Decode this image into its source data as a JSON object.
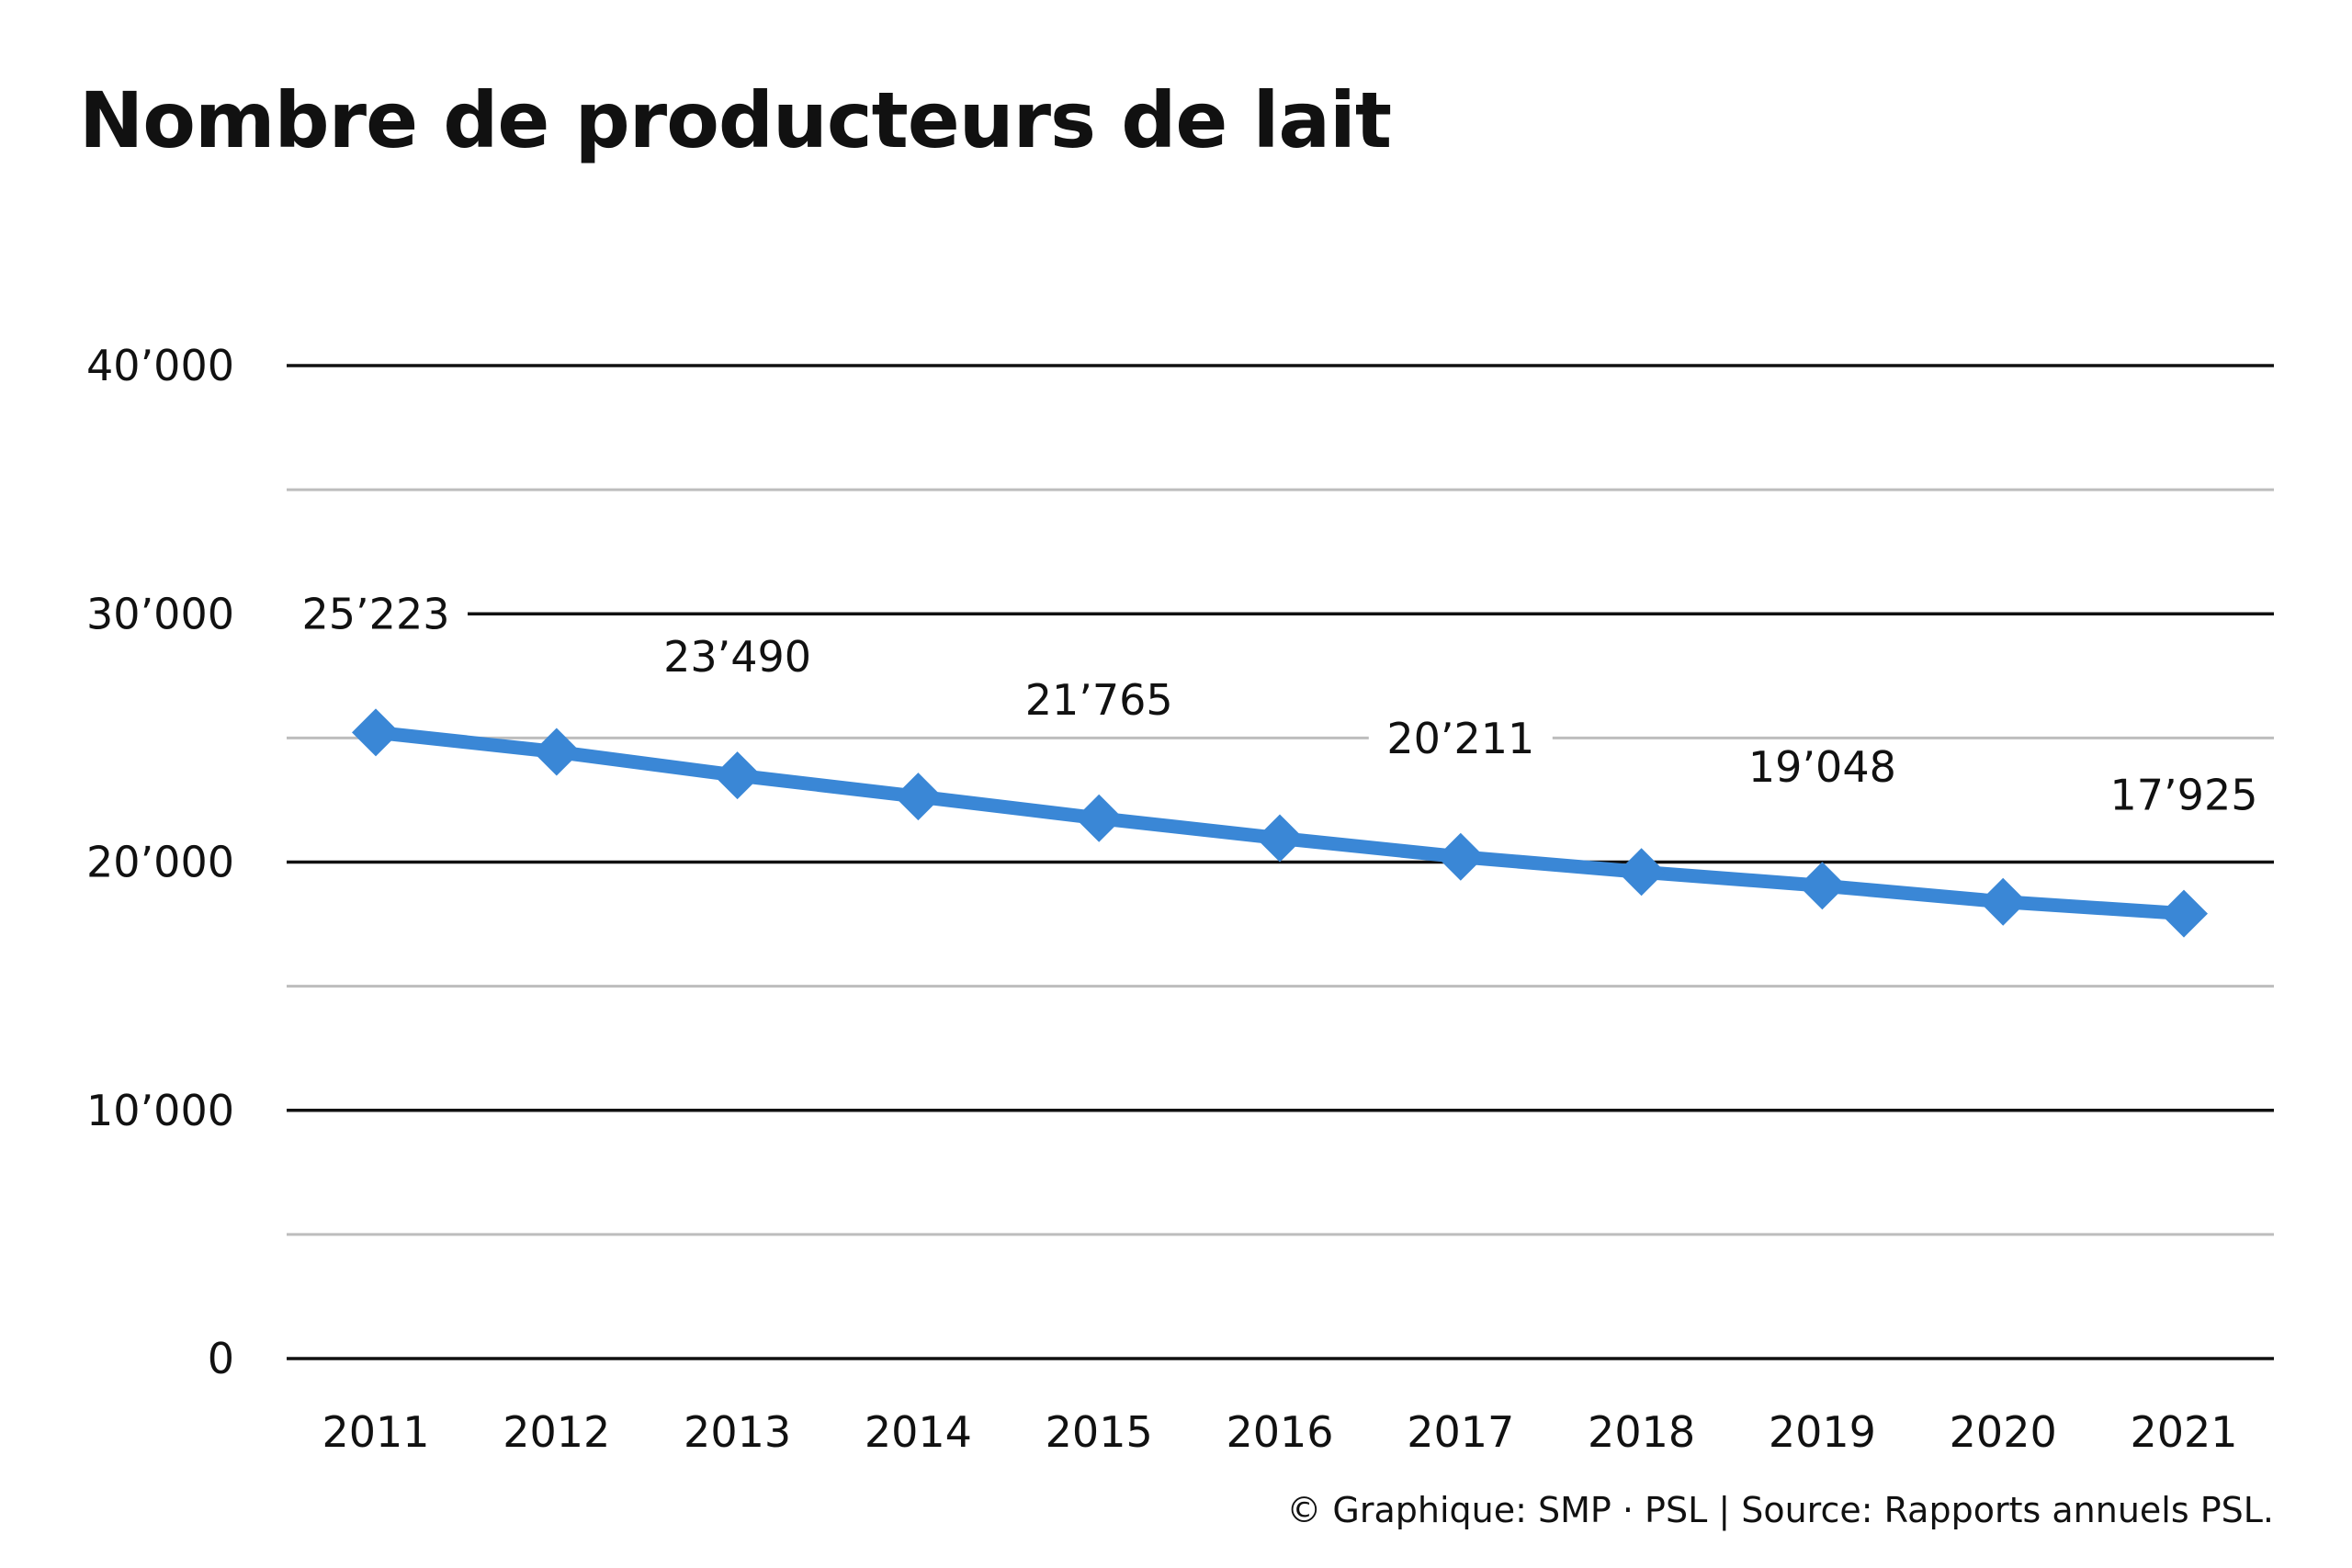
{
  "header": {
    "title": "Nombre de producteurs de lait"
  },
  "footer": {
    "credit": "© Graphique: SMP · PSL | Source: Rapports annuels PSL."
  },
  "colors": {
    "line": "#3a87d6",
    "gridline_major": "#111111",
    "gridline_minor": "#bdbdbd"
  },
  "chart_data": {
    "type": "line",
    "title": "Nombre de producteurs de lait",
    "xlabel": "",
    "ylabel": "",
    "categories": [
      "2011",
      "2012",
      "2013",
      "2014",
      "2015",
      "2016",
      "2017",
      "2018",
      "2019",
      "2020",
      "2021"
    ],
    "series": [
      {
        "values": [
          25223,
          24440,
          23490,
          22640,
          21765,
          20960,
          20211,
          19600,
          19048,
          18400,
          17925
        ]
      }
    ],
    "data_labels": [
      {
        "index": 0,
        "text": "25’223"
      },
      {
        "index": 2,
        "text": "23’490"
      },
      {
        "index": 4,
        "text": "21’765"
      },
      {
        "index": 6,
        "text": "20’211"
      },
      {
        "index": 8,
        "text": "19’048"
      },
      {
        "index": 10,
        "text": "17’925"
      }
    ],
    "ylim": [
      0,
      40000
    ],
    "yticks": [
      0,
      10000,
      20000,
      30000,
      40000
    ],
    "ytick_labels": [
      "0",
      "10’000",
      "20’000",
      "30’000",
      "40’000"
    ],
    "minor_gridlines": [
      5000,
      15000,
      25000,
      35000
    ],
    "marker": "diamond",
    "grid": true,
    "legend": "none"
  }
}
